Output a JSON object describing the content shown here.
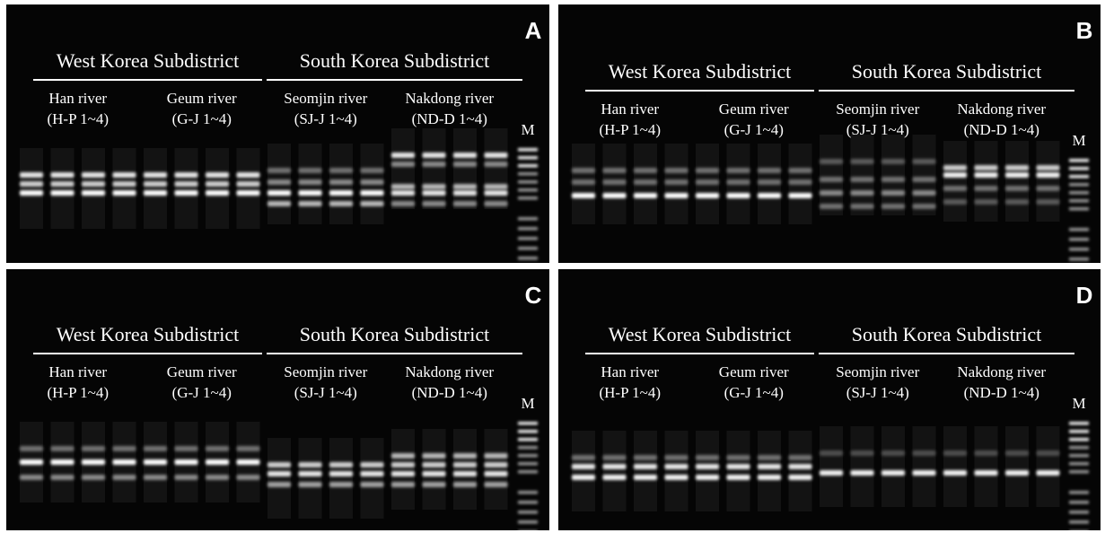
{
  "panels": [
    {
      "label": "A",
      "marker": "M",
      "groups": [
        {
          "title": "West Korea Subdistrict",
          "rivers": [
            {
              "name": "Han river",
              "code": "(H-P 1~4)"
            },
            {
              "name": "Geum river",
              "code": "(G-J 1~4)"
            }
          ]
        },
        {
          "title": "South Korea Subdistrict",
          "rivers": [
            {
              "name": "Seomjin river",
              "code": "(SJ-J 1~4)"
            },
            {
              "name": "Nakdong river",
              "code": "(ND-D 1~4)"
            }
          ]
        }
      ]
    },
    {
      "label": "B",
      "marker": "M",
      "groups": [
        {
          "title": "West Korea Subdistrict",
          "rivers": [
            {
              "name": "Han river",
              "code": "(H-P 1~4)"
            },
            {
              "name": "Geum river",
              "code": "(G-J 1~4)"
            }
          ]
        },
        {
          "title": "South Korea Subdistrict",
          "rivers": [
            {
              "name": "Seomjin river",
              "code": "(SJ-J 1~4)"
            },
            {
              "name": "Nakdong river",
              "code": "(ND-D 1~4)"
            }
          ]
        }
      ]
    },
    {
      "label": "C",
      "marker": "M",
      "groups": [
        {
          "title": "West Korea Subdistrict",
          "rivers": [
            {
              "name": "Han river",
              "code": "(H-P 1~4)"
            },
            {
              "name": "Geum river",
              "code": "(G-J 1~4)"
            }
          ]
        },
        {
          "title": "South Korea Subdistrict",
          "rivers": [
            {
              "name": "Seomjin river",
              "code": "(SJ-J 1~4)"
            },
            {
              "name": "Nakdong river",
              "code": "(ND-D 1~4)"
            }
          ]
        }
      ]
    },
    {
      "label": "D",
      "marker": "M",
      "groups": [
        {
          "title": "West Korea Subdistrict",
          "rivers": [
            {
              "name": "Han river",
              "code": "(H-P 1~4)"
            },
            {
              "name": "Geum river",
              "code": "(G-J 1~4)"
            }
          ]
        },
        {
          "title": "South Korea Subdistrict",
          "rivers": [
            {
              "name": "Seomjin river",
              "code": "(SJ-J 1~4)"
            },
            {
              "name": "Nakdong river",
              "code": "(ND-D 1~4)"
            }
          ]
        }
      ]
    }
  ]
}
